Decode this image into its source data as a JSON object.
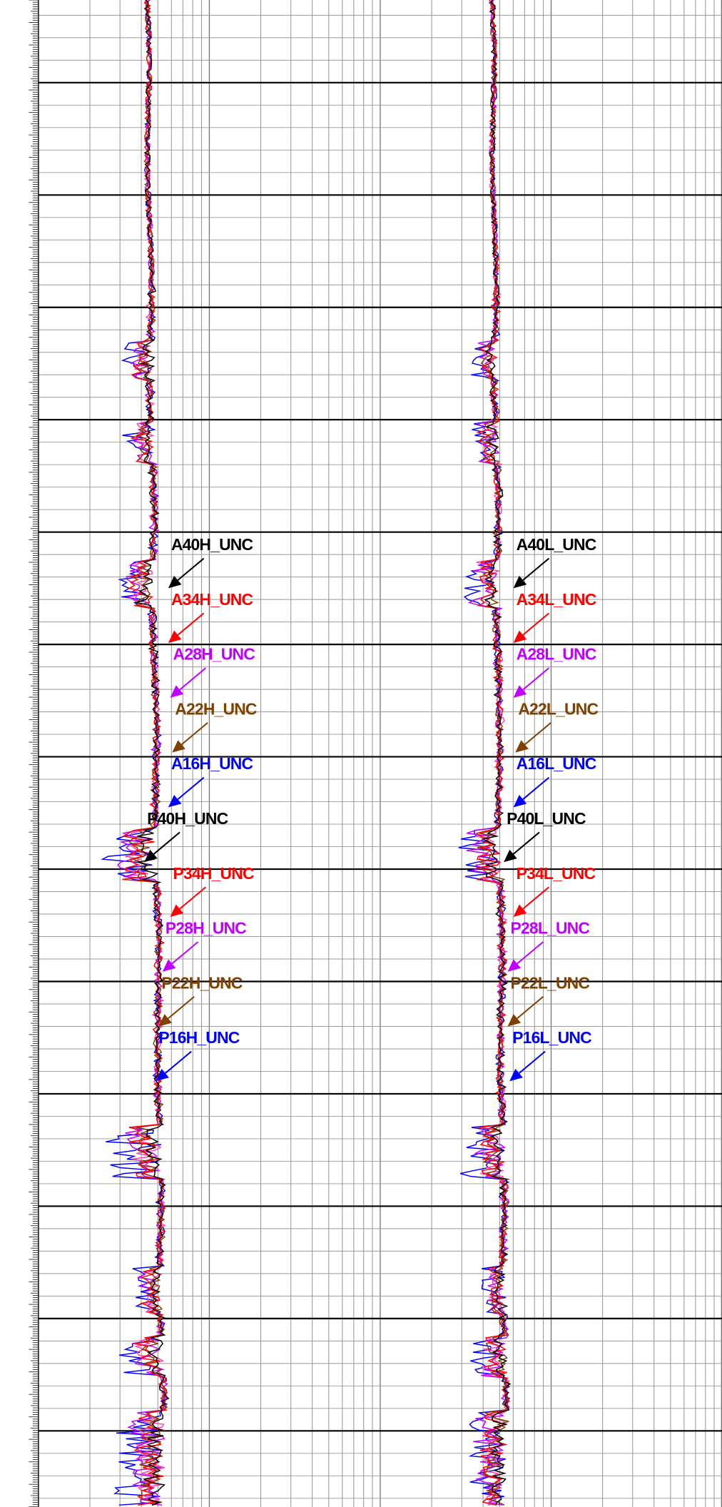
{
  "tracks": [
    {
      "labels": [
        {
          "text": "A40H_UNC",
          "color": "#000000"
        },
        {
          "text": "A34H_UNC",
          "color": "#ff0000"
        },
        {
          "text": "A28H_UNC",
          "color": "#c000ff"
        },
        {
          "text": "A22H_UNC",
          "color": "#804000"
        },
        {
          "text": "A16H_UNC",
          "color": "#0000ff"
        },
        {
          "text": "P40H_UNC",
          "color": "#000000"
        },
        {
          "text": "P34H_UNC",
          "color": "#ff0000"
        },
        {
          "text": "P28H_UNC",
          "color": "#c000ff"
        },
        {
          "text": "P22H_UNC",
          "color": "#804000"
        },
        {
          "text": "P16H_UNC",
          "color": "#0000ff"
        }
      ]
    },
    {
      "labels": [
        {
          "text": "A40L_UNC",
          "color": "#000000"
        },
        {
          "text": "A34L_UNC",
          "color": "#ff0000"
        },
        {
          "text": "A28L_UNC",
          "color": "#c000ff"
        },
        {
          "text": "A22L_UNC",
          "color": "#804000"
        },
        {
          "text": "A16L_UNC",
          "color": "#0000ff"
        },
        {
          "text": "P40L_UNC",
          "color": "#000000"
        },
        {
          "text": "P34L_UNC",
          "color": "#ff0000"
        },
        {
          "text": "P28L_UNC",
          "color": "#c000ff"
        },
        {
          "text": "P22L_UNC",
          "color": "#804000"
        },
        {
          "text": "P16L_UNC",
          "color": "#0000ff"
        }
      ]
    }
  ]
}
